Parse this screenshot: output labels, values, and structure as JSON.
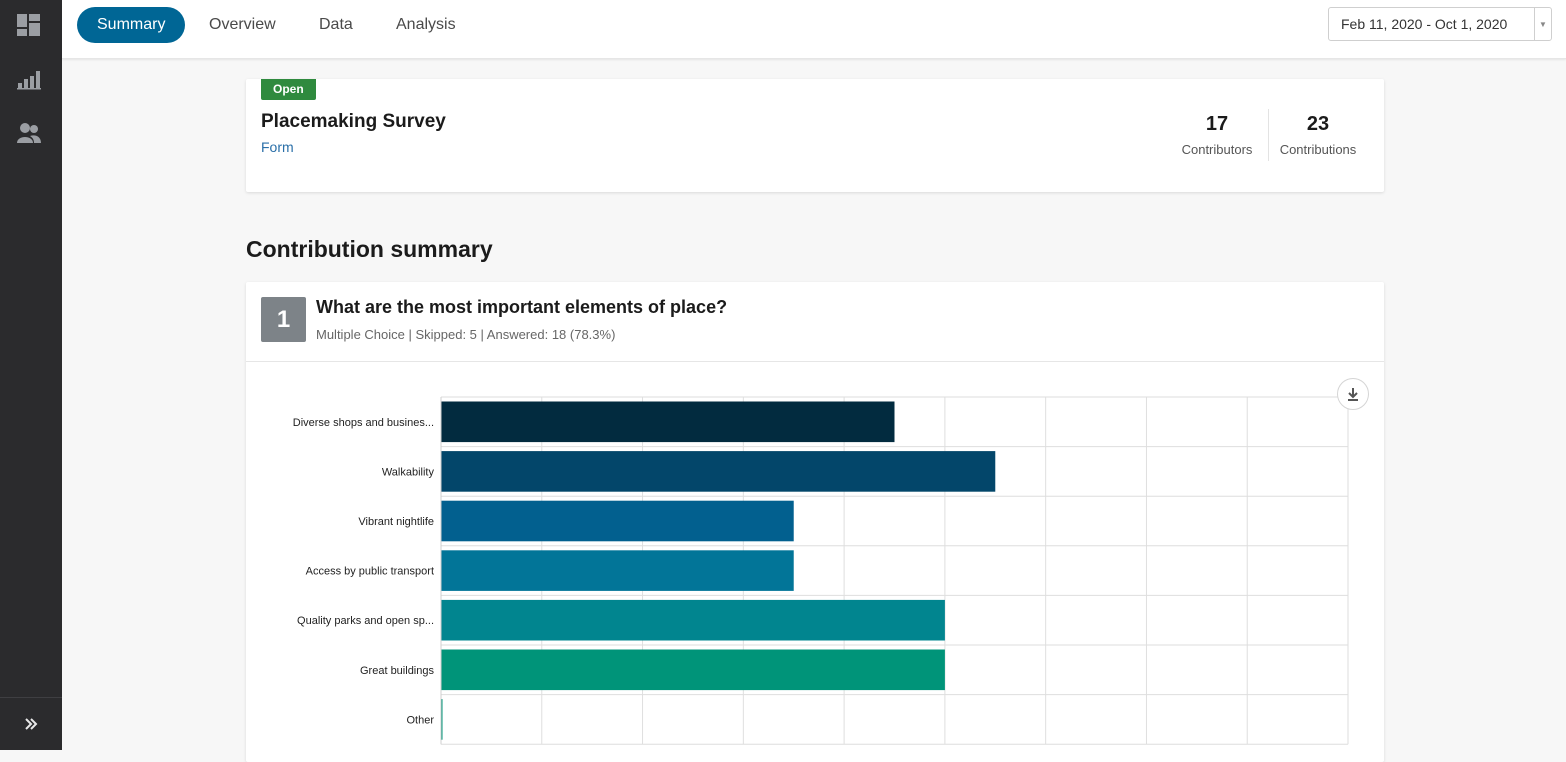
{
  "sidebar": {
    "items": [
      {
        "icon": "dashboard-icon"
      },
      {
        "icon": "bar-chart-icon"
      },
      {
        "icon": "people-icon"
      }
    ],
    "expand_icon": "double-chevron-right-icon"
  },
  "tabs": [
    {
      "label": "Summary",
      "active": true
    },
    {
      "label": "Overview",
      "active": false
    },
    {
      "label": "Data",
      "active": false
    },
    {
      "label": "Analysis",
      "active": false
    }
  ],
  "date_range": {
    "value": "Feb 11, 2020 - Oct 1, 2020"
  },
  "survey": {
    "status": "Open",
    "title": "Placemaking Survey",
    "type": "Form",
    "contributors": {
      "value": "17",
      "label": "Contributors"
    },
    "contributions": {
      "value": "23",
      "label": "Contributions"
    }
  },
  "section_title": "Contribution summary",
  "question": {
    "number": "1",
    "title": "What are the most important elements of place?",
    "meta": "Multiple Choice | Skipped: 5 | Answered: 18 (78.3%)"
  },
  "chart_data": {
    "type": "bar",
    "orientation": "horizontal",
    "categories": [
      "Diverse shops and busines...",
      "Walkability",
      "Vibrant nightlife",
      "Access by public transport",
      "Quality parks and open sp...",
      "Great buildings",
      "Other"
    ],
    "values": [
      9,
      11,
      7,
      7,
      10,
      10,
      0
    ],
    "xlim": [
      0,
      18
    ],
    "grid": true,
    "colors": [
      "#022b3f",
      "#03466a",
      "#02608f",
      "#027598",
      "#01858f",
      "#009479",
      "#009479"
    ]
  }
}
